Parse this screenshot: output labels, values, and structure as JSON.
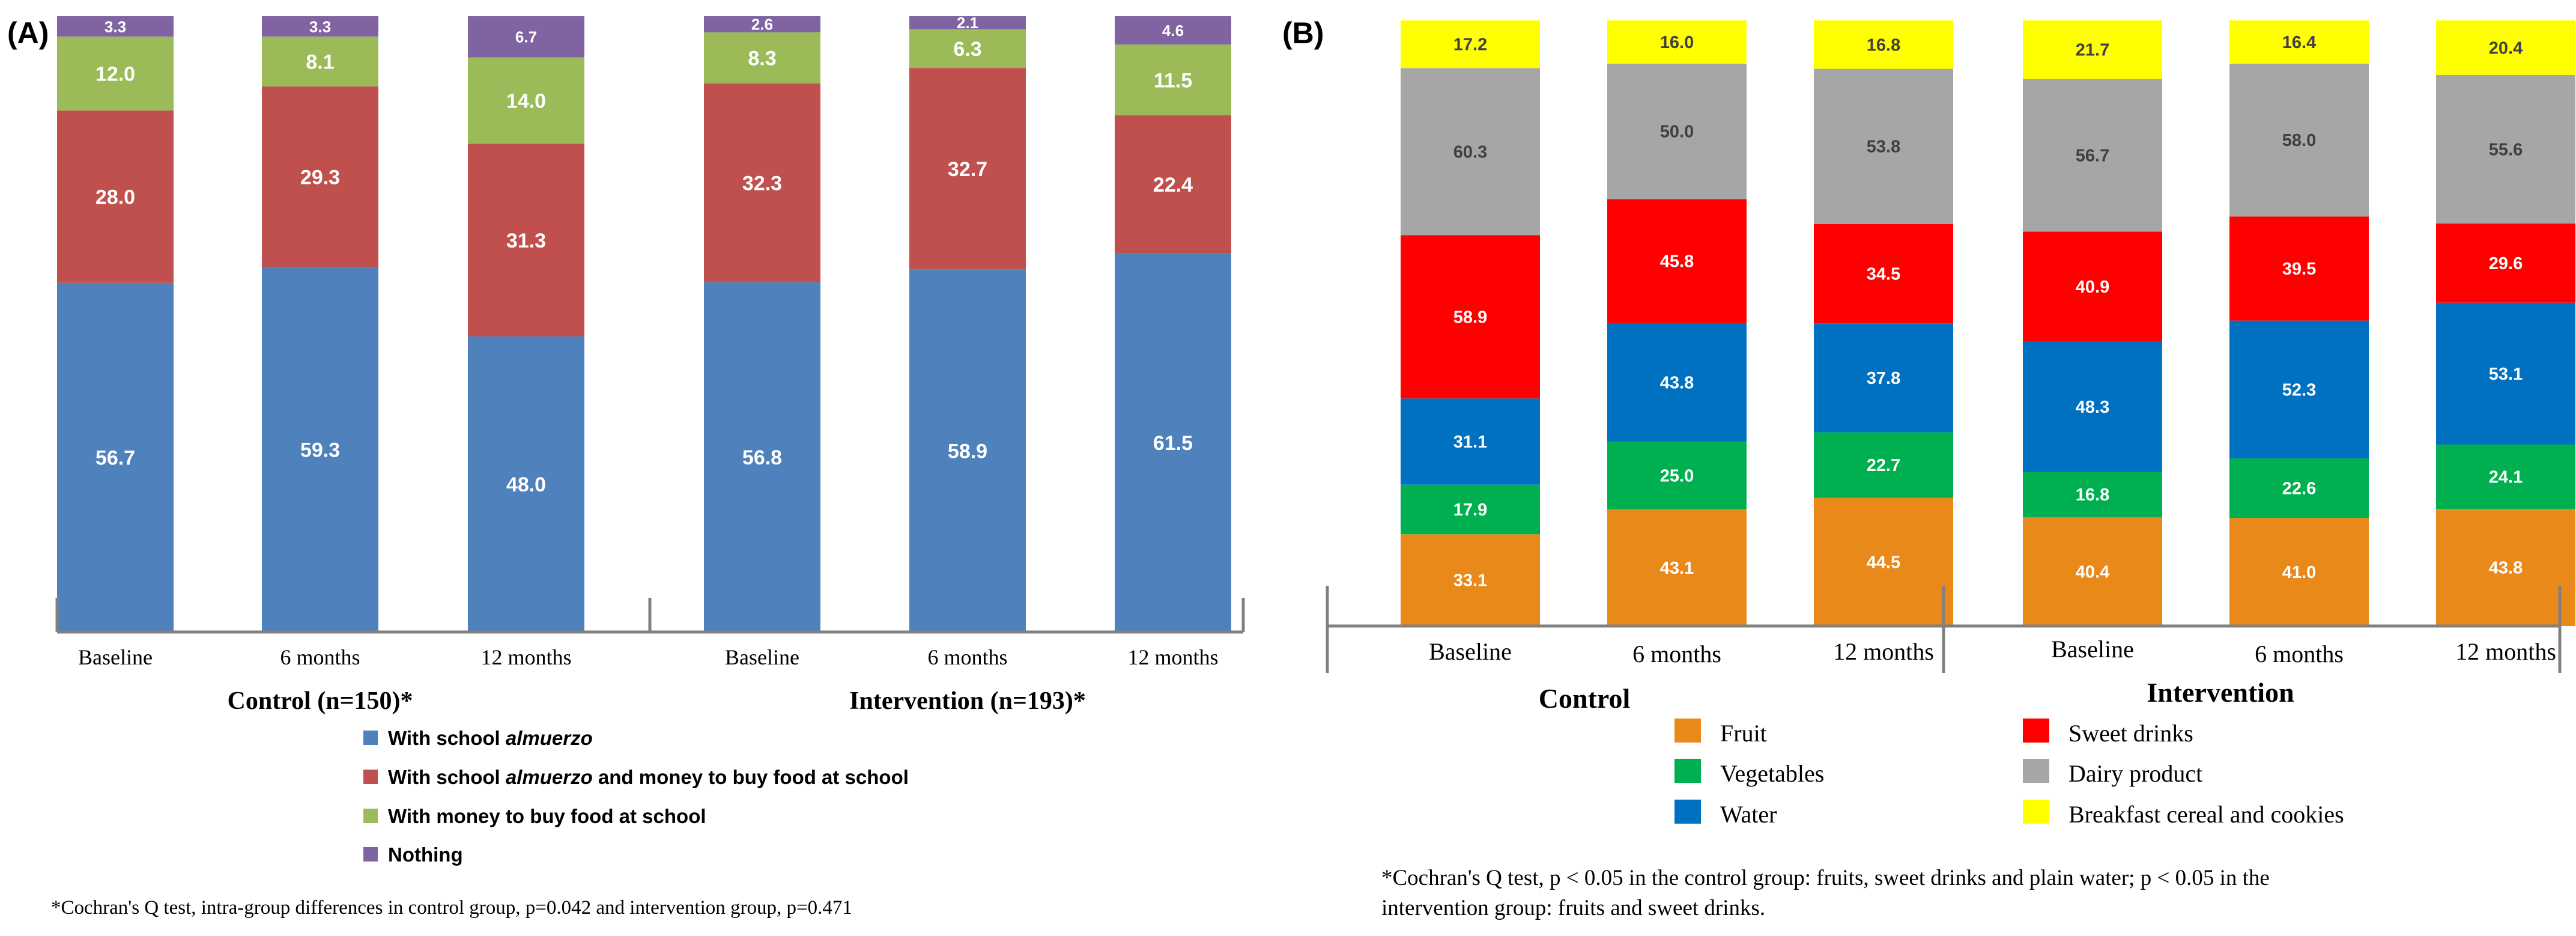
{
  "chart_data": [
    {
      "type": "bar",
      "stacked": true,
      "panel_label": "(A)",
      "ylim": [
        0,
        100
      ],
      "categories": [
        "Baseline",
        "6 months",
        "12 months",
        "Baseline",
        "6 months",
        "12 months"
      ],
      "groups": [
        "Control (n=150)*",
        "Intervention (n=193)*"
      ],
      "series": [
        {
          "name": "With school almuerzo",
          "name_prefix": "With school ",
          "name_italic": "almuerzo",
          "name_suffix": "",
          "color": "#4F81BD",
          "values": [
            56.7,
            59.3,
            48.0,
            56.8,
            58.9,
            61.5
          ]
        },
        {
          "name": "With school almuerzo and money to buy food at school",
          "name_prefix": "With school ",
          "name_italic": "almuerzo",
          "name_suffix": " and money to buy food at school",
          "color": "#C0504D",
          "values": [
            28.0,
            29.3,
            31.3,
            32.3,
            32.7,
            22.4
          ]
        },
        {
          "name": "With money to buy food at school",
          "name_prefix": "With money to buy food at school",
          "name_italic": "",
          "name_suffix": "",
          "color": "#9BBB59",
          "values": [
            12.0,
            8.1,
            14.0,
            8.3,
            6.3,
            11.5
          ]
        },
        {
          "name": "Nothing",
          "name_prefix": "Nothing",
          "name_italic": "",
          "name_suffix": "",
          "color": "#8064A2",
          "values": [
            3.3,
            3.3,
            6.7,
            2.6,
            2.1,
            4.6
          ]
        }
      ],
      "footnote": "*Cochran's Q test, intra-group differences in control group, p=0.042 and intervention group, p=0.471"
    },
    {
      "type": "bar",
      "stacked": true,
      "panel_label": "(B)",
      "categories": [
        "Baseline",
        "6 months",
        "12 months",
        "Baseline",
        "6 months",
        "12 months"
      ],
      "groups": [
        "Control",
        "Intervention"
      ],
      "series": [
        {
          "name": "Fruit",
          "color": "#E8891A",
          "values": [
            33.1,
            43.1,
            44.5,
            40.4,
            41.0,
            43.8
          ]
        },
        {
          "name": "Vegetables",
          "color": "#00B050",
          "values": [
            17.9,
            25.0,
            22.7,
            16.8,
            22.6,
            24.1
          ]
        },
        {
          "name": "Water",
          "color": "#0070C0",
          "values": [
            31.1,
            43.8,
            37.8,
            48.3,
            52.3,
            53.1
          ]
        },
        {
          "name": "Sweet drinks",
          "color": "#FF0000",
          "values": [
            58.9,
            45.8,
            34.5,
            40.9,
            39.5,
            29.6
          ]
        },
        {
          "name": "Dairy product",
          "color": "#A6A6A6",
          "values": [
            60.3,
            50.0,
            53.8,
            56.7,
            58.0,
            55.6
          ]
        },
        {
          "name": "Breakfast cereal and cookies",
          "color": "#FFFF00",
          "values": [
            17.2,
            16.0,
            16.8,
            21.7,
            16.4,
            20.4
          ]
        }
      ],
      "footnote_lines": [
        "*Cochran's Q test, p < 0.05 in the control group: fruits, sweet drinks and plain water; p < 0.05 in the",
        "intervention group: fruits and sweet drinks."
      ]
    }
  ]
}
